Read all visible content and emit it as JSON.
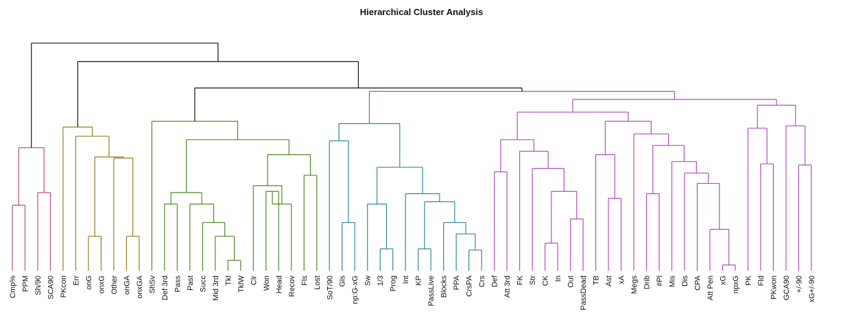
{
  "chart_data": {
    "type": "dendrogram",
    "title": "Hierarchical Cluster Analysis",
    "leaves": [
      "Cmp%",
      "PPM",
      "Sh/90",
      "SCA90",
      "PKcon",
      "Err",
      "onG",
      "onxG",
      "Other",
      "onGA",
      "onxGA",
      "ShSv",
      "Def 3rd",
      "Pass",
      "Past",
      "Succ",
      "Mid 3rd",
      "Tkl",
      "TklW",
      "Clr",
      "Won",
      "Head",
      "Recov",
      "Fls",
      "Lost",
      "SoT/90",
      "Gls",
      "np:G-xG",
      "Sw",
      "1/3",
      "Prog",
      "Int",
      "KP",
      "PassLive",
      "Blocks",
      "PPA",
      "CrsPA",
      "Crs",
      "Def",
      "Att 3rd",
      "FK",
      "Str",
      "CK",
      "In",
      "Out",
      "PassDead",
      "TB",
      "Ast",
      "xA",
      "Megs",
      "Drib",
      "#Pl",
      "Mis",
      "Dis",
      "CPA",
      "Att Pen",
      "xG",
      "npxG",
      "PK",
      "Fld",
      "PKwon",
      "GCA90",
      "+/-90",
      "xG+/-90"
    ],
    "cluster_colors": {
      "1": "#c04a82",
      "2": "#9a7c1e",
      "3": "#4a8a22",
      "4": "#2a8a9a",
      "5": "#b24cc0",
      "root": "#111111"
    },
    "merges": [
      {
        "a": "Cmp%",
        "b": "PPM",
        "h": 0.57,
        "c": "1"
      },
      {
        "a": "Sh/90",
        "b": "SCA90",
        "h": 0.68,
        "c": "1"
      },
      {
        "a": "0",
        "b": "1",
        "h": 1.07,
        "c": "1"
      },
      {
        "a": "onG",
        "b": "onxG",
        "h": 0.3,
        "c": "2"
      },
      {
        "a": "onGA",
        "b": "onxGA",
        "h": 0.3,
        "c": "2"
      },
      {
        "a": "Other",
        "b": "4",
        "h": 0.98,
        "c": "2"
      },
      {
        "a": "3",
        "b": "5",
        "h": 0.99,
        "c": "2"
      },
      {
        "a": "Err",
        "b": "6",
        "h": 1.17,
        "c": "2"
      },
      {
        "a": "PKcon",
        "b": "7",
        "h": 1.25,
        "c": "2"
      },
      {
        "a": "Tkl",
        "b": "TklW",
        "h": 0.09,
        "c": "3"
      },
      {
        "a": "Mid 3rd",
        "b": "9",
        "h": 0.3,
        "c": "3"
      },
      {
        "a": "Succ",
        "b": "10",
        "h": 0.42,
        "c": "3"
      },
      {
        "a": "Past",
        "b": "11",
        "h": 0.58,
        "c": "3"
      },
      {
        "a": "Def 3rd",
        "b": "Pass",
        "h": 0.58,
        "c": "3"
      },
      {
        "a": "13",
        "b": "12",
        "h": 0.68,
        "c": "3"
      },
      {
        "a": "Won",
        "b": "Head",
        "h": 0.69,
        "c": "3"
      },
      {
        "a": "Recov",
        "b": "15",
        "h": 0.58,
        "c": "3"
      },
      {
        "a": "Clr",
        "b": "16",
        "h": 0.74,
        "c": "3"
      },
      {
        "a": "Fls",
        "b": "Lost",
        "h": 0.83,
        "c": "3"
      },
      {
        "a": "17",
        "b": "18",
        "h": 1.01,
        "c": "3"
      },
      {
        "a": "14",
        "b": "19",
        "h": 1.14,
        "c": "3"
      },
      {
        "a": "ShSv",
        "b": "20",
        "h": 1.3,
        "c": "3"
      },
      {
        "a": "Gls",
        "b": "np:G-xG",
        "h": 0.42,
        "c": "4"
      },
      {
        "a": "SoT/90",
        "b": "22",
        "h": 1.13,
        "c": "4"
      },
      {
        "a": "1/3",
        "b": "Prog",
        "h": 0.19,
        "c": "4"
      },
      {
        "a": "Sw",
        "b": "24",
        "h": 0.58,
        "c": "4"
      },
      {
        "a": "KP",
        "b": "PassLive",
        "h": 0.19,
        "c": "4"
      },
      {
        "a": "CrsPA",
        "b": "Crs",
        "h": 0.18,
        "c": "4"
      },
      {
        "a": "PPA",
        "b": "27",
        "h": 0.32,
        "c": "4"
      },
      {
        "a": "Blocks",
        "b": "28",
        "h": 0.42,
        "c": "4"
      },
      {
        "a": "26",
        "b": "29",
        "h": 0.6,
        "c": "4"
      },
      {
        "a": "Int",
        "b": "30",
        "h": 0.67,
        "c": "4"
      },
      {
        "a": "25",
        "b": "31",
        "h": 0.9,
        "c": "4"
      },
      {
        "a": "23",
        "b": "32",
        "h": 1.28,
        "c": "4"
      },
      {
        "a": "CK",
        "b": "In",
        "h": 0.24,
        "c": "5"
      },
      {
        "a": "Out",
        "b": "PassDead",
        "h": 0.45,
        "c": "5"
      },
      {
        "a": "34",
        "b": "35",
        "h": 0.69,
        "c": "5"
      },
      {
        "a": "Str",
        "b": "36",
        "h": 0.89,
        "c": "5"
      },
      {
        "a": "FK",
        "b": "37",
        "h": 1.04,
        "c": "5"
      },
      {
        "a": "Def",
        "b": "Att 3rd",
        "h": 0.86,
        "c": "5"
      },
      {
        "a": "39",
        "b": "38",
        "h": 1.14,
        "c": "5"
      },
      {
        "a": "Ast",
        "b": "xA",
        "h": 0.63,
        "c": "5"
      },
      {
        "a": "TB",
        "b": "41",
        "h": 1.01,
        "c": "5"
      },
      {
        "a": "xG",
        "b": "npxG",
        "h": 0.05,
        "c": "5"
      },
      {
        "a": "Att Pen",
        "b": "43",
        "h": 0.36,
        "c": "5"
      },
      {
        "a": "CPA",
        "b": "44",
        "h": 0.76,
        "c": "5"
      },
      {
        "a": "Dis",
        "b": "45",
        "h": 0.85,
        "c": "5"
      },
      {
        "a": "Mis",
        "b": "46",
        "h": 0.95,
        "c": "5"
      },
      {
        "a": "Drib",
        "b": "#Pl",
        "h": 0.67,
        "c": "5"
      },
      {
        "a": "48",
        "b": "47",
        "h": 1.09,
        "c": "5"
      },
      {
        "a": "Megs",
        "b": "49",
        "h": 1.19,
        "c": "5"
      },
      {
        "a": "42",
        "b": "50",
        "h": 1.3,
        "c": "5"
      },
      {
        "a": "40",
        "b": "51",
        "h": 1.38,
        "c": "5"
      },
      {
        "a": "Fld",
        "b": "PKwon",
        "h": 0.93,
        "c": "5"
      },
      {
        "a": "PK",
        "b": "53",
        "h": 1.24,
        "c": "5"
      },
      {
        "a": "+/-90",
        "b": "xG+/-90",
        "h": 0.92,
        "c": "5"
      },
      {
        "a": "GCA90",
        "b": "55",
        "h": 1.26,
        "c": "5"
      },
      {
        "a": "54",
        "b": "56",
        "h": 1.44,
        "c": "5"
      },
      {
        "a": "52",
        "b": "57",
        "h": 1.49,
        "c": "5"
      },
      {
        "a": "33",
        "b": "58",
        "h": 1.56,
        "c": "5"
      },
      {
        "a": "21",
        "b": "59",
        "h": 1.59,
        "c": "root"
      },
      {
        "a": "8",
        "b": "60",
        "h": 1.82,
        "c": "root"
      },
      {
        "a": "2",
        "b": "61",
        "h": 1.98,
        "c": "root"
      }
    ]
  }
}
